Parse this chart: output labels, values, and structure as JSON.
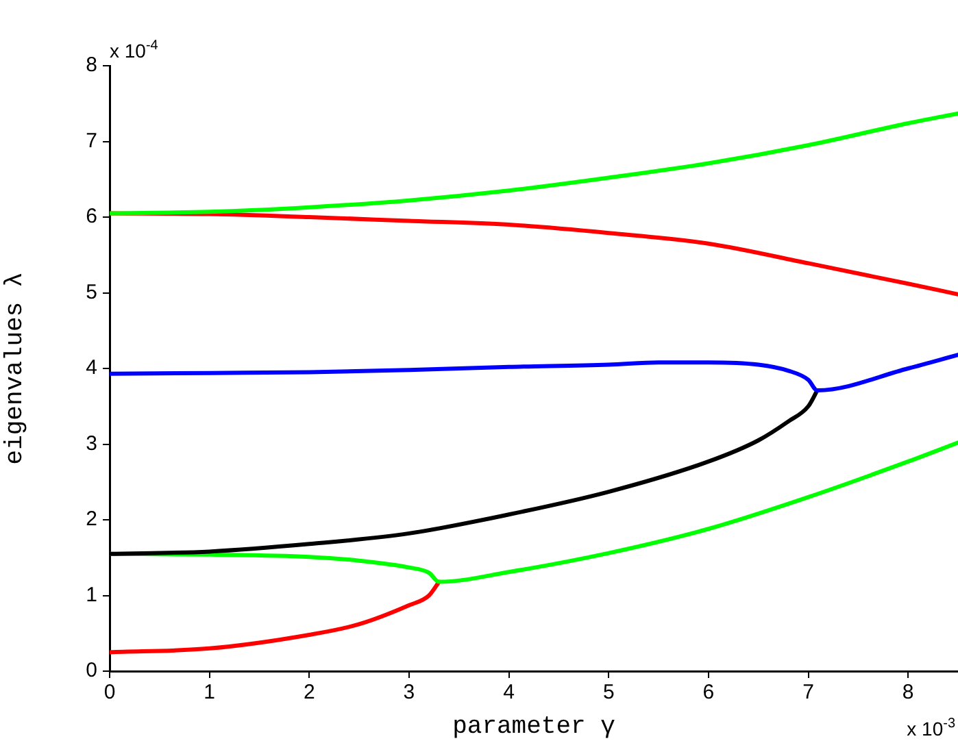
{
  "chart_data": {
    "type": "line",
    "xlabel": "parameter γ",
    "ylabel": "eigenvalues λ",
    "annotations": [
      "x 10$^{-4}$",
      "x 10$^{-3}$"
    ],
    "xlim": [
      0,
      8.5
    ],
    "xticks": [
      0,
      1,
      2,
      3,
      4,
      5,
      6,
      7,
      8
    ],
    "ylim": [
      0,
      8
    ],
    "yticks": [
      0,
      1,
      2,
      3,
      4,
      5,
      6,
      7,
      8
    ],
    "grid": false,
    "legend": false,
    "marker": "none",
    "line_style": "solid",
    "series": [
      {
        "color": "#00ff00",
        "x": [
          0,
          1,
          2,
          3,
          4,
          5,
          6,
          7,
          8,
          8.5
        ],
        "values": [
          6.05,
          6.07,
          6.13,
          6.22,
          6.35,
          6.52,
          6.71,
          6.95,
          7.24,
          7.37
        ]
      },
      {
        "color": "#ff0000",
        "x": [
          0,
          1,
          2,
          3,
          4,
          5,
          6,
          7,
          8,
          8.5
        ],
        "values": [
          6.05,
          6.04,
          6.0,
          5.95,
          5.9,
          5.79,
          5.65,
          5.39,
          5.12,
          4.98
        ]
      },
      {
        "color": "#0000ff",
        "x": [
          0,
          1,
          2,
          3,
          4,
          5,
          5.5,
          6,
          6.5,
          6.8,
          7.0,
          7.09,
          8,
          8.5
        ],
        "values": [
          3.93,
          3.94,
          3.95,
          3.98,
          4.02,
          4.05,
          4.08,
          4.08,
          4.05,
          3.97,
          3.85,
          3.71,
          4.0,
          4.18
        ]
      },
      {
        "color": "#000000",
        "x": [
          0,
          1,
          2,
          3,
          4,
          5,
          6,
          6.5,
          6.8,
          7.0,
          7.09
        ],
        "values": [
          1.55,
          1.58,
          1.68,
          1.82,
          2.07,
          2.37,
          2.77,
          3.05,
          3.3,
          3.5,
          3.71
        ]
      },
      {
        "color": "#00ff00",
        "x": [
          0,
          1,
          2,
          2.5,
          3,
          3.2,
          3.3,
          4,
          5,
          6,
          7,
          8,
          8.5
        ],
        "values": [
          1.55,
          1.54,
          1.51,
          1.46,
          1.37,
          1.3,
          1.18,
          1.31,
          1.56,
          1.88,
          2.3,
          2.77,
          3.02
        ]
      },
      {
        "color": "#ff0000",
        "x": [
          0,
          1,
          2,
          2.5,
          3,
          3.2,
          3.3
        ],
        "values": [
          0.25,
          0.3,
          0.48,
          0.62,
          0.87,
          1.0,
          1.18
        ]
      }
    ]
  }
}
